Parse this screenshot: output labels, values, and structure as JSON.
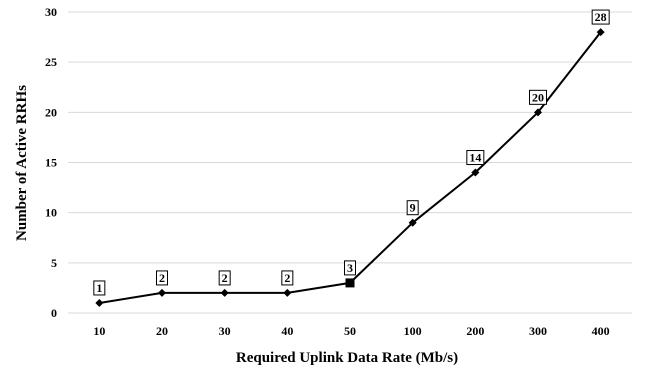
{
  "chart_data": {
    "type": "line",
    "categories": [
      "10",
      "20",
      "30",
      "40",
      "50",
      "100",
      "200",
      "300",
      "400"
    ],
    "series": [
      {
        "values": [
          1,
          2,
          2,
          2,
          3,
          9,
          14,
          20,
          28
        ]
      }
    ],
    "data_labels": [
      "1",
      "2",
      "2",
      "2",
      "3",
      "9",
      "14",
      "20",
      "28"
    ],
    "xlabel": "Required Uplink Data Rate (Mb/s)",
    "ylabel": "Number of Active RRHs",
    "ylim": [
      0,
      30
    ],
    "yticks": [
      "0",
      "5",
      "10",
      "15",
      "20",
      "25",
      "30"
    ],
    "grid": true,
    "legend": "none",
    "highlighted_category": "50",
    "line_color": "#000000",
    "grid_color": "#d9d9d9"
  }
}
